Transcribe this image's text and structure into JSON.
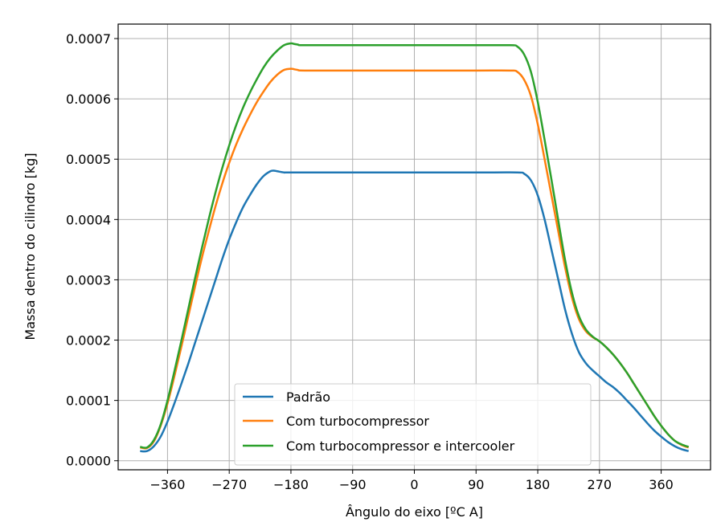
{
  "chart_data": {
    "type": "line",
    "xlabel": "Ângulo do eixo [ºC A]",
    "ylabel": "Massa dentro do cilindro [kg]",
    "xlim": [
      -432,
      432
    ],
    "ylim": [
      -1.5e-05,
      0.000724
    ],
    "xticks": [
      -360,
      -270,
      -180,
      -90,
      0,
      90,
      180,
      270,
      360
    ],
    "xtick_labels": [
      "−360",
      "−270",
      "−180",
      "−90",
      "0",
      "90",
      "180",
      "270",
      "360"
    ],
    "yticks": [
      0,
      0.0001,
      0.0002,
      0.0003,
      0.0004,
      0.0005,
      0.0006,
      0.0007
    ],
    "ytick_labels": [
      "0.0000",
      "0.0001",
      "0.0002",
      "0.0003",
      "0.0004",
      "0.0005",
      "0.0006",
      "0.0007"
    ],
    "grid": true,
    "legend_position": "bottom-center",
    "series": [
      {
        "name": "Padrão",
        "color": "#1f77b4",
        "points": [
          [
            -400,
            1.6e-05
          ],
          [
            -390,
            1.6e-05
          ],
          [
            -380,
            2.4e-05
          ],
          [
            -370,
            4e-05
          ],
          [
            -360,
            6.5e-05
          ],
          [
            -350,
            9.5e-05
          ],
          [
            -340,
            0.000127
          ],
          [
            -330,
            0.00016
          ],
          [
            -320,
            0.000195
          ],
          [
            -310,
            0.00023
          ],
          [
            -300,
            0.000265
          ],
          [
            -290,
            0.0003
          ],
          [
            -280,
            0.000335
          ],
          [
            -270,
            0.000367
          ],
          [
            -260,
            0.000395
          ],
          [
            -250,
            0.00042
          ],
          [
            -240,
            0.00044
          ],
          [
            -230,
            0.000458
          ],
          [
            -220,
            0.000472
          ],
          [
            -210,
            0.00048
          ],
          [
            -205,
            0.000481
          ],
          [
            -200,
            0.00048
          ],
          [
            -190,
            0.000478
          ],
          [
            -180,
            0.000478
          ],
          [
            -90,
            0.000478
          ],
          [
            0,
            0.000478
          ],
          [
            90,
            0.000478
          ],
          [
            150,
            0.000478
          ],
          [
            160,
            0.000476
          ],
          [
            170,
            0.000465
          ],
          [
            180,
            0.00044
          ],
          [
            190,
            0.0004
          ],
          [
            200,
            0.00035
          ],
          [
            210,
            0.0003
          ],
          [
            220,
            0.00025
          ],
          [
            230,
            0.00021
          ],
          [
            240,
            0.00018
          ],
          [
            250,
            0.000162
          ],
          [
            260,
            0.00015
          ],
          [
            270,
            0.00014
          ],
          [
            280,
            0.00013
          ],
          [
            290,
            0.000122
          ],
          [
            300,
            0.000112
          ],
          [
            310,
            0.0001
          ],
          [
            320,
            8.8e-05
          ],
          [
            330,
            7.5e-05
          ],
          [
            340,
            6.2e-05
          ],
          [
            350,
            5e-05
          ],
          [
            360,
            4e-05
          ],
          [
            370,
            3.1e-05
          ],
          [
            380,
            2.4e-05
          ],
          [
            390,
            1.9e-05
          ],
          [
            400,
            1.6e-05
          ]
        ]
      },
      {
        "name": "Com turbocompressor",
        "color": "#ff7f0e",
        "points": [
          [
            -400,
            2.2e-05
          ],
          [
            -390,
            2.1e-05
          ],
          [
            -380,
            3.2e-05
          ],
          [
            -370,
            5.8e-05
          ],
          [
            -360,
            9.5e-05
          ],
          [
            -350,
            0.00014
          ],
          [
            -340,
            0.000188
          ],
          [
            -330,
            0.000238
          ],
          [
            -320,
            0.000288
          ],
          [
            -310,
            0.000336
          ],
          [
            -300,
            0.00038
          ],
          [
            -290,
            0.000422
          ],
          [
            -280,
            0.00046
          ],
          [
            -270,
            0.000494
          ],
          [
            -260,
            0.000524
          ],
          [
            -250,
            0.00055
          ],
          [
            -240,
            0.000573
          ],
          [
            -230,
            0.000594
          ],
          [
            -220,
            0.000612
          ],
          [
            -210,
            0.000628
          ],
          [
            -200,
            0.00064
          ],
          [
            -190,
            0.000648
          ],
          [
            -180,
            0.00065
          ],
          [
            -175,
            0.000649
          ],
          [
            -170,
            0.000648
          ],
          [
            -160,
            0.000647
          ],
          [
            -90,
            0.000647
          ],
          [
            0,
            0.000647
          ],
          [
            90,
            0.000647
          ],
          [
            140,
            0.000647
          ],
          [
            150,
            0.000645
          ],
          [
            160,
            0.000632
          ],
          [
            170,
            0.000605
          ],
          [
            180,
            0.000558
          ],
          [
            190,
            0.0005
          ],
          [
            200,
            0.00044
          ],
          [
            210,
            0.00038
          ],
          [
            220,
            0.00032
          ],
          [
            230,
            0.00027
          ],
          [
            240,
            0.000235
          ],
          [
            250,
            0.000215
          ],
          [
            260,
            0.000205
          ],
          [
            270,
            0.000198
          ],
          [
            280,
            0.000188
          ],
          [
            290,
            0.000176
          ],
          [
            300,
            0.000162
          ],
          [
            310,
            0.000146
          ],
          [
            320,
            0.000128
          ],
          [
            330,
            0.00011
          ],
          [
            340,
            9.2e-05
          ],
          [
            350,
            7.4e-05
          ],
          [
            360,
            5.8e-05
          ],
          [
            370,
            4.4e-05
          ],
          [
            380,
            3.3e-05
          ],
          [
            390,
            2.6e-05
          ],
          [
            400,
            2.2e-05
          ]
        ]
      },
      {
        "name": "Com turbocompressor e intercooler",
        "color": "#2ca02c",
        "points": [
          [
            -400,
            2.3e-05
          ],
          [
            -390,
            2.2e-05
          ],
          [
            -380,
            3.4e-05
          ],
          [
            -370,
            6e-05
          ],
          [
            -360,
            0.0001
          ],
          [
            -350,
            0.000148
          ],
          [
            -340,
            0.000198
          ],
          [
            -330,
            0.00025
          ],
          [
            -320,
            0.000302
          ],
          [
            -310,
            0.000352
          ],
          [
            -300,
            0.0004
          ],
          [
            -290,
            0.000445
          ],
          [
            -280,
            0.000486
          ],
          [
            -270,
            0.000523
          ],
          [
            -260,
            0.000556
          ],
          [
            -250,
            0.000585
          ],
          [
            -240,
            0.00061
          ],
          [
            -230,
            0.000632
          ],
          [
            -220,
            0.000652
          ],
          [
            -210,
            0.000668
          ],
          [
            -200,
            0.00068
          ],
          [
            -190,
            0.000689
          ],
          [
            -180,
            0.000692
          ],
          [
            -175,
            0.000691
          ],
          [
            -170,
            0.00069
          ],
          [
            -160,
            0.000689
          ],
          [
            -90,
            0.000689
          ],
          [
            0,
            0.000689
          ],
          [
            90,
            0.000689
          ],
          [
            140,
            0.000689
          ],
          [
            150,
            0.000687
          ],
          [
            160,
            0.000674
          ],
          [
            170,
            0.000645
          ],
          [
            180,
            0.000595
          ],
          [
            190,
            0.000532
          ],
          [
            200,
            0.000466
          ],
          [
            210,
            0.000398
          ],
          [
            220,
            0.000332
          ],
          [
            230,
            0.000278
          ],
          [
            240,
            0.00024
          ],
          [
            250,
            0.000218
          ],
          [
            260,
            0.000206
          ],
          [
            270,
            0.000198
          ],
          [
            280,
            0.000188
          ],
          [
            290,
            0.000176
          ],
          [
            300,
            0.000162
          ],
          [
            310,
            0.000146
          ],
          [
            320,
            0.000128
          ],
          [
            330,
            0.00011
          ],
          [
            340,
            9.2e-05
          ],
          [
            350,
            7.4e-05
          ],
          [
            360,
            5.8e-05
          ],
          [
            370,
            4.4e-05
          ],
          [
            380,
            3.3e-05
          ],
          [
            390,
            2.7e-05
          ],
          [
            400,
            2.3e-05
          ]
        ]
      }
    ]
  }
}
